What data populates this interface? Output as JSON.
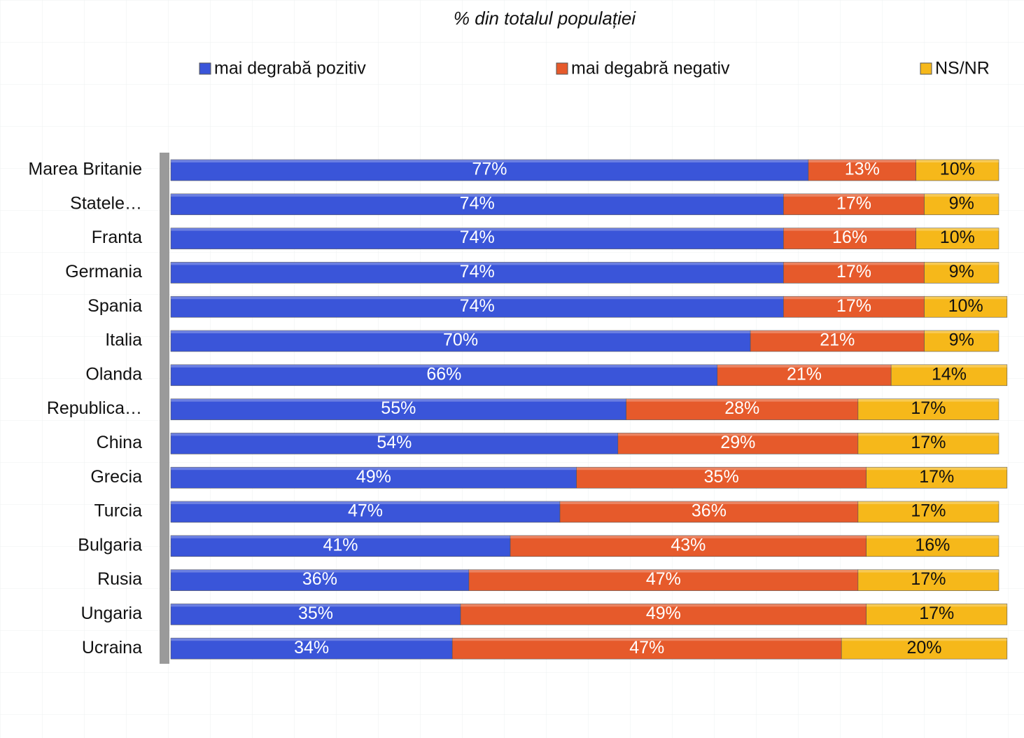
{
  "chart_data": {
    "type": "stacked-bar",
    "orientation": "horizontal",
    "title": "% din totalul populației",
    "categories": [
      "Marea Britanie",
      "Statele…",
      "Franta",
      "Germania",
      "Spania",
      "Italia",
      "Olanda",
      "Republica…",
      "China",
      "Grecia",
      "Turcia",
      "Bulgaria",
      "Rusia",
      "Ungaria",
      "Ucraina"
    ],
    "series": [
      {
        "name": "mai degrabă pozitiv",
        "color": "#3a55d9",
        "values": [
          77,
          74,
          74,
          74,
          74,
          70,
          66,
          55,
          54,
          49,
          47,
          41,
          36,
          35,
          34
        ],
        "value_labels": [
          "77%",
          "74%",
          "74%",
          "74%",
          "74%",
          "70%",
          "66%",
          "55%",
          "54%",
          "49%",
          "47%",
          "41%",
          "36%",
          "35%",
          "34%"
        ]
      },
      {
        "name": "mai degabră negativ",
        "color": "#e65a2b",
        "values": [
          13,
          17,
          16,
          17,
          17,
          21,
          21,
          28,
          29,
          35,
          36,
          43,
          47,
          49,
          47
        ],
        "value_labels": [
          "13%",
          "17%",
          "16%",
          "17%",
          "17%",
          "21%",
          "21%",
          "28%",
          "29%",
          "35%",
          "36%",
          "43%",
          "47%",
          "49%",
          "47%"
        ]
      },
      {
        "name": "NS/NR",
        "color": "#f6b81a",
        "values": [
          10,
          9,
          10,
          9,
          10,
          9,
          14,
          17,
          17,
          17,
          17,
          16,
          17,
          17,
          20
        ],
        "value_labels": [
          "10%",
          "9%",
          "10%",
          "9%",
          "10%",
          "9%",
          "14%",
          "17%",
          "17%",
          "17%",
          "17%",
          "16%",
          "17%",
          "17%",
          "20%"
        ]
      }
    ],
    "xlim": [
      0,
      100
    ]
  }
}
